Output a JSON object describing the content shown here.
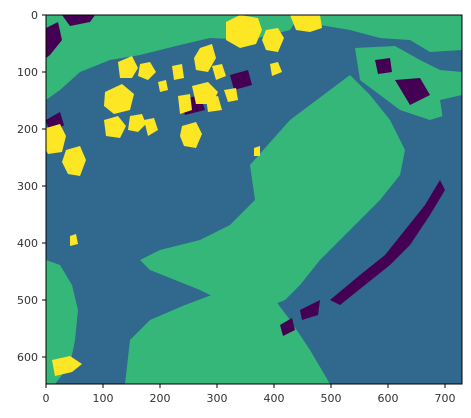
{
  "image": {
    "description_colors": {
      "class_0": "#440154",
      "class_1": "#31688e",
      "class_2": "#35b779",
      "class_3": "#fde725"
    },
    "pixel_extent": {
      "x": [
        0,
        730
      ],
      "y": [
        0,
        650
      ]
    }
  },
  "axes": {
    "x_ticks": [
      "0",
      "100",
      "200",
      "300",
      "400",
      "500",
      "600",
      "700"
    ],
    "y_ticks": [
      "0",
      "100",
      "200",
      "300",
      "400",
      "500",
      "600"
    ]
  }
}
